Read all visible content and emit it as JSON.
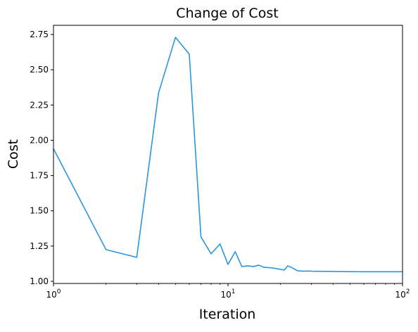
{
  "chart_data": {
    "type": "line",
    "title": "Change of Cost",
    "xlabel": "Iteration",
    "ylabel": "Cost",
    "xscale": "log",
    "xlim": [
      1,
      100
    ],
    "ylim": [
      0.985,
      2.815
    ],
    "grid": false,
    "line_color": "#2b95e0",
    "x_ticks": [
      {
        "base": "10",
        "exp": "0",
        "value": 1
      },
      {
        "base": "10",
        "exp": "1",
        "value": 10
      },
      {
        "base": "10",
        "exp": "2",
        "value": 100
      }
    ],
    "y_ticks": [
      {
        "label": "1.00",
        "value": 1.0
      },
      {
        "label": "1.25",
        "value": 1.25
      },
      {
        "label": "1.50",
        "value": 1.5
      },
      {
        "label": "1.75",
        "value": 1.75
      },
      {
        "label": "2.00",
        "value": 2.0
      },
      {
        "label": "2.25",
        "value": 2.25
      },
      {
        "label": "2.50",
        "value": 2.5
      },
      {
        "label": "2.75",
        "value": 2.75
      }
    ],
    "series": [
      {
        "x": [
          1,
          2,
          3,
          4,
          5,
          6,
          7,
          8,
          9,
          10,
          11,
          12,
          13,
          14,
          15,
          16,
          18,
          20,
          21,
          22,
          23,
          25,
          27,
          29,
          30,
          40,
          50,
          60,
          70,
          80,
          90,
          100
        ],
        "y": [
          1.94,
          1.225,
          1.17,
          2.335,
          2.73,
          2.61,
          1.315,
          1.195,
          1.265,
          1.12,
          1.21,
          1.105,
          1.11,
          1.105,
          1.115,
          1.1,
          1.095,
          1.085,
          1.08,
          1.11,
          1.1,
          1.075,
          1.072,
          1.073,
          1.072,
          1.07,
          1.069,
          1.068,
          1.068,
          1.068,
          1.068,
          1.068
        ]
      }
    ]
  }
}
